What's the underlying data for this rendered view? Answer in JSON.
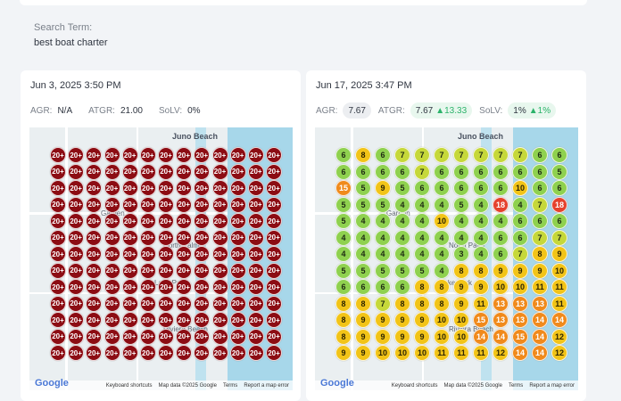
{
  "search": {
    "label": "Search Term:",
    "value": "best boat charter"
  },
  "map_text": {
    "place": "Juno Beach",
    "labels": [
      "Garden",
      "North Palm",
      "Lake Park",
      "Riviera Beach"
    ],
    "google": "Google",
    "attribution": [
      "Keyboard shortcuts",
      "Map data ©2025 Google",
      "Terms",
      "Report a map error"
    ]
  },
  "cards": [
    {
      "date": "Jun 3, 2025 3:50 PM",
      "metrics": {
        "agr_label": "AGR:",
        "agr_value": "N/A",
        "atgr_label": "ATGR:",
        "atgr_value": "21.00",
        "solv_label": "SoLV:",
        "solv_value": "0%"
      },
      "grid": [
        [
          "20+",
          "20+",
          "20+",
          "20+",
          "20+",
          "20+",
          "20+",
          "20+",
          "20+",
          "20+",
          "20+",
          "20+",
          "20+"
        ],
        [
          "20+",
          "20+",
          "20+",
          "20+",
          "20+",
          "20+",
          "20+",
          "20+",
          "20+",
          "20+",
          "20+",
          "20+",
          "20+"
        ],
        [
          "20+",
          "20+",
          "20+",
          "20+",
          "20+",
          "20+",
          "20+",
          "20+",
          "20+",
          "20+",
          "20+",
          "20+",
          "20+"
        ],
        [
          "20+",
          "20+",
          "20+",
          "20+",
          "20+",
          "20+",
          "20+",
          "20+",
          "20+",
          "20+",
          "20+",
          "20+",
          "20+"
        ],
        [
          "20+",
          "20+",
          "20+",
          "20+",
          "20+",
          "20+",
          "20+",
          "20+",
          "20+",
          "20+",
          "20+",
          "20+",
          "20+"
        ],
        [
          "20+",
          "20+",
          "20+",
          "20+",
          "20+",
          "20+",
          "20+",
          "20+",
          "20+",
          "20+",
          "20+",
          "20+",
          "20+"
        ],
        [
          "20+",
          "20+",
          "20+",
          "20+",
          "20+",
          "20+",
          "20+",
          "20+",
          "20+",
          "20+",
          "20+",
          "20+",
          "20+"
        ],
        [
          "20+",
          "20+",
          "20+",
          "20+",
          "20+",
          "20+",
          "20+",
          "20+",
          "20+",
          "20+",
          "20+",
          "20+",
          "20+"
        ],
        [
          "20+",
          "20+",
          "20+",
          "20+",
          "20+",
          "20+",
          "20+",
          "20+",
          "20+",
          "20+",
          "20+",
          "20+",
          "20+"
        ],
        [
          "20+",
          "20+",
          "20+",
          "20+",
          "20+",
          "20+",
          "20+",
          "20+",
          "20+",
          "20+",
          "20+",
          "20+",
          "20+"
        ],
        [
          "20+",
          "20+",
          "20+",
          "20+",
          "20+",
          "20+",
          "20+",
          "20+",
          "20+",
          "20+",
          "20+",
          "20+",
          "20+"
        ],
        [
          "20+",
          "20+",
          "20+",
          "20+",
          "20+",
          "20+",
          "20+",
          "20+",
          "20+",
          "20+",
          "20+",
          "20+",
          "20+"
        ],
        [
          "20+",
          "20+",
          "20+",
          "20+",
          "20+",
          "20+",
          "20+",
          "20+",
          "20+",
          "20+",
          "20+",
          "20+",
          "20+"
        ]
      ]
    },
    {
      "date": "Jun 17, 2025 3:47 PM",
      "metrics": {
        "agr_label": "AGR:",
        "agr_value": "7.67",
        "atgr_label": "ATGR:",
        "atgr_value": "7.67",
        "atgr_delta": "13.33",
        "solv_label": "SoLV:",
        "solv_value": "1%",
        "solv_delta": "1%"
      },
      "grid": [
        [
          "6",
          "8",
          "6",
          "7",
          "7",
          "7",
          "7",
          "7",
          "7",
          "7",
          "6",
          "6"
        ],
        [
          "6",
          "6",
          "6",
          "6",
          "7",
          "6",
          "6",
          "6",
          "6",
          "6",
          "6",
          "5"
        ],
        [
          "15",
          "5",
          "9",
          "5",
          "6",
          "6",
          "6",
          "6",
          "6",
          "10",
          "6",
          "6"
        ],
        [
          "5",
          "5",
          "5",
          "4",
          "4",
          "4",
          "5",
          "4",
          "18",
          "4",
          "7",
          "18"
        ],
        [
          "5",
          "4",
          "4",
          "4",
          "4",
          "10",
          "4",
          "4",
          "4",
          "6",
          "6",
          "6"
        ],
        [
          "4",
          "4",
          "4",
          "4",
          "4",
          "4",
          "4",
          "4",
          "6",
          "6",
          "7",
          "7"
        ],
        [
          "4",
          "4",
          "4",
          "4",
          "4",
          "4",
          "3",
          "4",
          "6",
          "7",
          "8",
          "9"
        ],
        [
          "5",
          "5",
          "5",
          "5",
          "5",
          "4",
          "8",
          "8",
          "9",
          "9",
          "9",
          "10"
        ],
        [
          "6",
          "6",
          "6",
          "6",
          "8",
          "8",
          "9",
          "9",
          "10",
          "10",
          "11",
          "11"
        ],
        [
          "8",
          "8",
          "7",
          "8",
          "8",
          "8",
          "9",
          "11",
          "13",
          "13",
          "13",
          "11"
        ],
        [
          "8",
          "9",
          "9",
          "9",
          "9",
          "10",
          "10",
          "15",
          "13",
          "13",
          "14",
          "14"
        ],
        [
          "8",
          "9",
          "9",
          "9",
          "9",
          "10",
          "10",
          "14",
          "14",
          "15",
          "14",
          "12"
        ],
        [
          "9",
          "9",
          "10",
          "10",
          "10",
          "11",
          "11",
          "11",
          "12",
          "14",
          "14",
          "12"
        ]
      ]
    }
  ],
  "colors": {
    "green": "#8fd14f",
    "yellow": "#f2c418",
    "orange": "#f08a1c",
    "red": "#e5412d",
    "dark_red": "#8c0c13"
  }
}
